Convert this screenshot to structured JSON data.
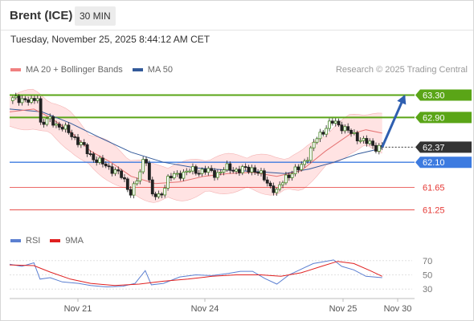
{
  "header": {
    "symbol": "Brent (ICE)",
    "timeframe": "30 MIN",
    "timestamp": "Tuesday, November 25, 2025 8:44:12 AM CET"
  },
  "legend_main": {
    "items": [
      {
        "label": "MA 20 + Bollinger Bands",
        "color": "#f08080"
      },
      {
        "label": "MA 50",
        "color": "#335a9a"
      }
    ],
    "research": "Research © 2025 Trading Central"
  },
  "legend_rsi": {
    "items": [
      {
        "label": "RSI",
        "color": "#5b7fd1"
      },
      {
        "label": "9MA",
        "color": "#e02020"
      }
    ]
  },
  "colors": {
    "resistance": "#5aa517",
    "support": "#3d7be0",
    "minor_level": "#e53935",
    "current": "#333333",
    "candle_up": "#4a8a2a",
    "candle_down": "#222222",
    "bb_fill": "#ffd9d9",
    "arrow": "#2f5fb0"
  },
  "chart_data": [
    {
      "type": "candlestick",
      "title": "Brent (ICE)",
      "timeframe": "30 MIN",
      "x_labels": [
        "Nov 21",
        "Nov 24",
        "Nov 25",
        "Nov 30"
      ],
      "ylim": [
        61.0,
        63.55
      ],
      "levels": [
        {
          "value": 63.3,
          "label": "63.30",
          "kind": "resistance"
        },
        {
          "value": 62.9,
          "label": "62.90",
          "kind": "resistance"
        },
        {
          "value": 62.37,
          "label": "62.37",
          "kind": "current"
        },
        {
          "value": 62.1,
          "label": "62.10",
          "kind": "support"
        },
        {
          "value": 61.65,
          "label": "61.65",
          "kind": "minor"
        },
        {
          "value": 61.25,
          "label": "61.25",
          "kind": "minor"
        }
      ],
      "price_path": [
        {
          "t": 0.0,
          "v": 63.2
        },
        {
          "t": 0.03,
          "v": 63.25
        },
        {
          "t": 0.055,
          "v": 63.15
        },
        {
          "t": 0.07,
          "v": 63.3
        },
        {
          "t": 0.075,
          "v": 62.8
        },
        {
          "t": 0.1,
          "v": 62.85
        },
        {
          "t": 0.13,
          "v": 62.72
        },
        {
          "t": 0.16,
          "v": 62.55
        },
        {
          "t": 0.19,
          "v": 62.3
        },
        {
          "t": 0.22,
          "v": 62.1
        },
        {
          "t": 0.25,
          "v": 62.0
        },
        {
          "t": 0.28,
          "v": 61.82
        },
        {
          "t": 0.3,
          "v": 61.55
        },
        {
          "t": 0.32,
          "v": 61.85
        },
        {
          "t": 0.335,
          "v": 62.3
        },
        {
          "t": 0.35,
          "v": 61.5
        },
        {
          "t": 0.37,
          "v": 61.48
        },
        {
          "t": 0.39,
          "v": 61.8
        },
        {
          "t": 0.42,
          "v": 61.9
        },
        {
          "t": 0.45,
          "v": 61.95
        },
        {
          "t": 0.48,
          "v": 61.95
        },
        {
          "t": 0.51,
          "v": 61.9
        },
        {
          "t": 0.54,
          "v": 62.0
        },
        {
          "t": 0.57,
          "v": 61.95
        },
        {
          "t": 0.6,
          "v": 62.0
        },
        {
          "t": 0.63,
          "v": 61.8
        },
        {
          "t": 0.66,
          "v": 61.55
        },
        {
          "t": 0.68,
          "v": 61.85
        },
        {
          "t": 0.71,
          "v": 61.95
        },
        {
          "t": 0.74,
          "v": 62.25
        },
        {
          "t": 0.76,
          "v": 62.55
        },
        {
          "t": 0.78,
          "v": 62.72
        },
        {
          "t": 0.8,
          "v": 62.82
        },
        {
          "t": 0.82,
          "v": 62.75
        },
        {
          "t": 0.84,
          "v": 62.62
        },
        {
          "t": 0.86,
          "v": 62.55
        },
        {
          "t": 0.88,
          "v": 62.45
        },
        {
          "t": 0.905,
          "v": 62.38
        },
        {
          "t": 0.92,
          "v": 62.37
        }
      ],
      "ma20": [
        {
          "t": 0.0,
          "v": 63.0
        },
        {
          "t": 0.06,
          "v": 63.05
        },
        {
          "t": 0.1,
          "v": 62.9
        },
        {
          "t": 0.15,
          "v": 62.65
        },
        {
          "t": 0.2,
          "v": 62.3
        },
        {
          "t": 0.25,
          "v": 62.1
        },
        {
          "t": 0.3,
          "v": 61.85
        },
        {
          "t": 0.36,
          "v": 61.72
        },
        {
          "t": 0.42,
          "v": 61.75
        },
        {
          "t": 0.48,
          "v": 61.85
        },
        {
          "t": 0.54,
          "v": 61.9
        },
        {
          "t": 0.6,
          "v": 61.92
        },
        {
          "t": 0.66,
          "v": 61.85
        },
        {
          "t": 0.72,
          "v": 61.95
        },
        {
          "t": 0.78,
          "v": 62.3
        },
        {
          "t": 0.84,
          "v": 62.6
        },
        {
          "t": 0.88,
          "v": 62.68
        },
        {
          "t": 0.92,
          "v": 62.62
        }
      ],
      "ma50": [
        {
          "t": 0.0,
          "v": 63.05
        },
        {
          "t": 0.08,
          "v": 63.0
        },
        {
          "t": 0.15,
          "v": 62.8
        },
        {
          "t": 0.22,
          "v": 62.55
        },
        {
          "t": 0.3,
          "v": 62.28
        },
        {
          "t": 0.38,
          "v": 62.1
        },
        {
          "t": 0.46,
          "v": 62.0
        },
        {
          "t": 0.54,
          "v": 61.96
        },
        {
          "t": 0.62,
          "v": 61.93
        },
        {
          "t": 0.68,
          "v": 61.9
        },
        {
          "t": 0.74,
          "v": 61.98
        },
        {
          "t": 0.8,
          "v": 62.1
        },
        {
          "t": 0.86,
          "v": 62.25
        },
        {
          "t": 0.92,
          "v": 62.35
        }
      ],
      "bb_width": 0.3,
      "forecast_arrow": {
        "from": {
          "t": 0.92,
          "v": 62.37
        },
        "to": {
          "t": 0.975,
          "v": 63.28
        }
      }
    },
    {
      "type": "line",
      "title": "RSI",
      "ylim": [
        20,
        80
      ],
      "y_ticks": [
        70,
        50,
        30
      ],
      "series": [
        {
          "name": "RSI",
          "points": [
            {
              "t": 0.0,
              "v": 65
            },
            {
              "t": 0.03,
              "v": 62
            },
            {
              "t": 0.06,
              "v": 67
            },
            {
              "t": 0.075,
              "v": 44
            },
            {
              "t": 0.1,
              "v": 46
            },
            {
              "t": 0.13,
              "v": 40
            },
            {
              "t": 0.17,
              "v": 38
            },
            {
              "t": 0.2,
              "v": 35
            },
            {
              "t": 0.24,
              "v": 33
            },
            {
              "t": 0.28,
              "v": 34
            },
            {
              "t": 0.31,
              "v": 38
            },
            {
              "t": 0.335,
              "v": 56
            },
            {
              "t": 0.35,
              "v": 36
            },
            {
              "t": 0.38,
              "v": 38
            },
            {
              "t": 0.42,
              "v": 47
            },
            {
              "t": 0.46,
              "v": 50
            },
            {
              "t": 0.5,
              "v": 49
            },
            {
              "t": 0.54,
              "v": 52
            },
            {
              "t": 0.57,
              "v": 55
            },
            {
              "t": 0.6,
              "v": 55
            },
            {
              "t": 0.63,
              "v": 45
            },
            {
              "t": 0.66,
              "v": 37
            },
            {
              "t": 0.69,
              "v": 50
            },
            {
              "t": 0.72,
              "v": 58
            },
            {
              "t": 0.75,
              "v": 66
            },
            {
              "t": 0.78,
              "v": 69
            },
            {
              "t": 0.8,
              "v": 71
            },
            {
              "t": 0.82,
              "v": 62
            },
            {
              "t": 0.85,
              "v": 57
            },
            {
              "t": 0.88,
              "v": 48
            },
            {
              "t": 0.9,
              "v": 47
            },
            {
              "t": 0.92,
              "v": 46
            }
          ]
        },
        {
          "name": "9MA",
          "points": [
            {
              "t": 0.0,
              "v": 64
            },
            {
              "t": 0.06,
              "v": 63
            },
            {
              "t": 0.1,
              "v": 54
            },
            {
              "t": 0.15,
              "v": 44
            },
            {
              "t": 0.2,
              "v": 38
            },
            {
              "t": 0.26,
              "v": 35
            },
            {
              "t": 0.32,
              "v": 37
            },
            {
              "t": 0.38,
              "v": 41
            },
            {
              "t": 0.44,
              "v": 44
            },
            {
              "t": 0.5,
              "v": 48
            },
            {
              "t": 0.56,
              "v": 50
            },
            {
              "t": 0.62,
              "v": 50
            },
            {
              "t": 0.67,
              "v": 48
            },
            {
              "t": 0.72,
              "v": 53
            },
            {
              "t": 0.77,
              "v": 62
            },
            {
              "t": 0.81,
              "v": 69
            },
            {
              "t": 0.85,
              "v": 66
            },
            {
              "t": 0.89,
              "v": 56
            },
            {
              "t": 0.92,
              "v": 48
            }
          ]
        }
      ]
    }
  ]
}
